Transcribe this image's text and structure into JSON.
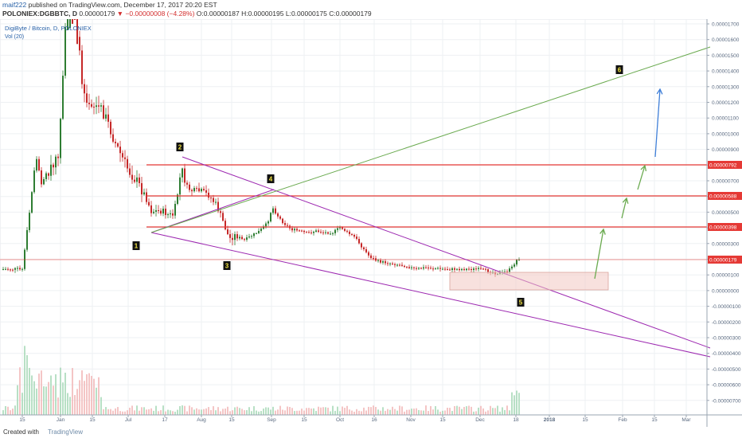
{
  "header": {
    "author": "maif222",
    "published": " published on TradingView.com, December 17, 2017 20:20 EST",
    "symbol": "POLONIEX:DGBBTC, D",
    "last": "0.00000179",
    "change": "−0.00000008 (−4.28%)",
    "open": "O:0.00000187",
    "high": "H:0.00000195",
    "low": "L:0.00000175",
    "close": "C:0.00000179"
  },
  "legend": {
    "title": "DigiByte / Bitcoin, D, POLONIEX",
    "vol": "Vol (20)"
  },
  "footer": {
    "created": "Created with",
    "brand": "TradingView"
  },
  "colors": {
    "up": "#2e7d32",
    "down": "#c62828",
    "resistance": "#e53935",
    "wedge": "#9c27b0",
    "trend": "#6aaa4f",
    "arrow_green": "#6aaa4f",
    "arrow_blue": "#3f7fd8",
    "box": "#f2c9c2",
    "axis_text": "#5a6a80",
    "grid": "#eef0f3"
  },
  "icons": {
    "brand_logo": "tradingview-logo-icon",
    "down_arrow": "down-triangle-icon"
  },
  "chart_data": {
    "type": "candlestick",
    "title": "DigiByte / Bitcoin, D, POLONIEX",
    "xlabel": "",
    "ylabel": "",
    "ylim": [
      -8e-07,
      1.7e-06
    ],
    "grid": true,
    "legend_position": "top-left",
    "y_ticks": [
      "0.00001700",
      "0.00001600",
      "0.00001500",
      "0.00001400",
      "0.00001300",
      "0.00001200",
      "0.00001100",
      "0.00001000",
      "0.00000900",
      "0.00000800",
      "0.00000700",
      "0.00000600",
      "0.00000500",
      "0.00000400",
      "0.00000300",
      "0.00000200",
      "0.00000100",
      "0.00000000",
      "-0.00000100",
      "-0.00000200",
      "-0.00000300",
      "-0.00000400",
      "-0.00000500",
      "-0.00000600",
      "-0.00000700"
    ],
    "x_ticks": [
      "15",
      "Jan",
      "15",
      "Jul",
      "17",
      "Aug",
      "15",
      "Sep",
      "15",
      "Oct",
      "16",
      "Nov",
      "15",
      "Dec",
      "18",
      "2018",
      "15",
      "Feb",
      "15",
      "Mar"
    ],
    "price_labels": [
      {
        "text": "0.00000792",
        "value": 7.92e-06,
        "kind": "resistance"
      },
      {
        "text": "0.00000588",
        "value": 5.88e-06,
        "kind": "resistance"
      },
      {
        "text": "0.00000398",
        "value": 3.98e-06,
        "kind": "resistance"
      },
      {
        "text": "0.00000179",
        "value": 1.79e-06,
        "kind": "last"
      }
    ],
    "annotations": [
      "1",
      "2",
      "3",
      "4",
      "5",
      "6"
    ]
  }
}
